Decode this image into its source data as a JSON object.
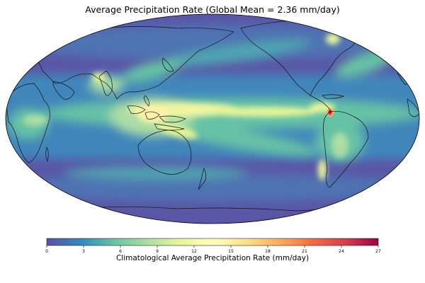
{
  "title": "Average Precipitation Rate (Global Mean = 2.36 mm/day)",
  "colorbar": {
    "label": "Climatological Average Precipitation Rate (mm/day)",
    "min": 0,
    "max": 27,
    "ticks": [
      "0",
      "3",
      "6",
      "9",
      "12",
      "15",
      "18",
      "21",
      "24",
      "27"
    ],
    "tick_values": [
      0,
      3,
      6,
      9,
      12,
      15,
      18,
      21,
      24,
      27
    ],
    "colors": [
      "#5e4fa2",
      "#3288bd",
      "#66c2a5",
      "#abdda4",
      "#e6f598",
      "#ffffbf",
      "#fee08b",
      "#fdae61",
      "#f46d43",
      "#d53e4f",
      "#9e0142"
    ]
  },
  "map": {
    "projection": "robinson",
    "central_longitude": 180,
    "colormap": "Spectral_r"
  }
}
